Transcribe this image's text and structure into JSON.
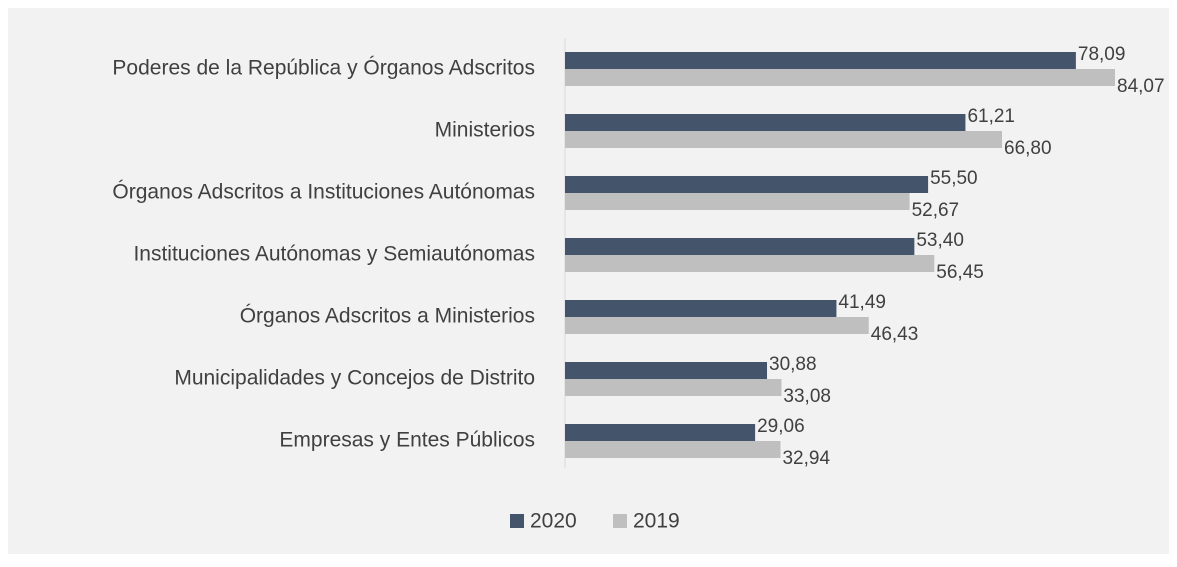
{
  "chart_data": {
    "type": "bar",
    "orientation": "horizontal",
    "categories": [
      "Poderes de la República y Órganos Adscritos",
      "Ministerios",
      "Órganos Adscritos a Instituciones Autónomas",
      "Instituciones Autónomas y Semiautónomas",
      "Órganos Adscritos a Ministerios",
      "Municipalidades y Concejos de Distrito",
      "Empresas y Entes Públicos"
    ],
    "series": [
      {
        "name": "2020",
        "color": "#44546a",
        "values": [
          78.09,
          61.21,
          55.5,
          53.4,
          41.49,
          30.88,
          29.06
        ],
        "value_labels": [
          "78,09",
          "61,21",
          "55,50",
          "53,40",
          "41,49",
          "30,88",
          "29,06"
        ]
      },
      {
        "name": "2019",
        "color": "#bfbfbf",
        "values": [
          84.07,
          66.8,
          52.67,
          56.45,
          46.43,
          33.08,
          32.94
        ],
        "value_labels": [
          "84,07",
          "66,80",
          "52,67",
          "56,45",
          "46,43",
          "33,08",
          "32,94"
        ]
      }
    ],
    "legend": "bottom"
  }
}
